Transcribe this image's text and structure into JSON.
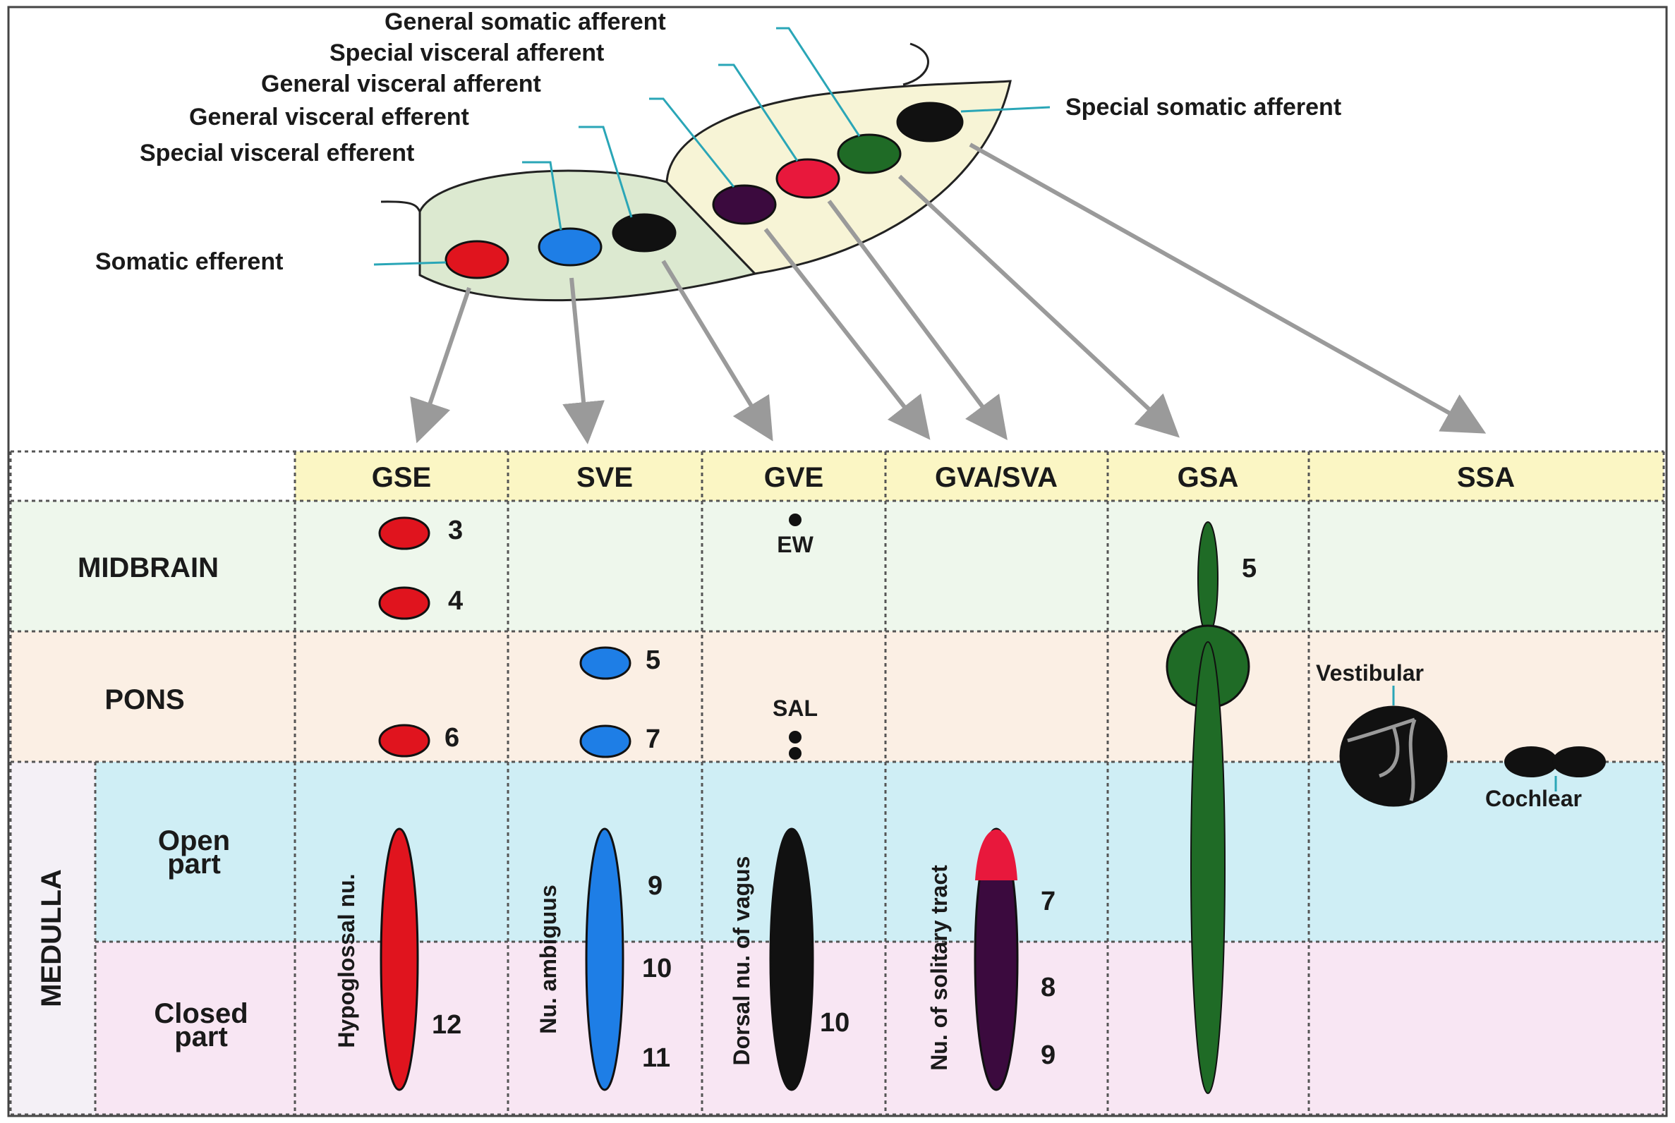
{
  "top_labels": {
    "general_somatic_afferent": "General somatic afferent",
    "special_visceral_afferent": "Special visceral afferent",
    "general_visceral_afferent": "General visceral afferent",
    "general_visceral_efferent": "General visceral efferent",
    "special_visceral_efferent": "Special visceral efferent",
    "somatic_efferent": "Somatic efferent",
    "special_somatic_afferent": "Special somatic afferent"
  },
  "columns": {
    "gse": "GSE",
    "sve": "SVE",
    "gve": "GVE",
    "gva_sva": "GVA/SVA",
    "gsa": "GSA",
    "ssa": "SSA"
  },
  "rows": {
    "midbrain": "MIDBRAIN",
    "pons": "PONS",
    "medulla": "MEDULLA",
    "open_part_1": "Open",
    "open_part_2": "part",
    "closed_part_1": "Closed",
    "closed_part_2": "part"
  },
  "cells": {
    "gse_3": "3",
    "gse_4": "4",
    "gse_6": "6",
    "gse_12": "12",
    "gse_nucleus": "Hypoglossal nu.",
    "sve_5": "5",
    "sve_7": "7",
    "sve_9": "9",
    "sve_10": "10",
    "sve_11": "11",
    "sve_nucleus": "Nu. ambiguus",
    "gve_ew": "EW",
    "gve_sal": "SAL",
    "gve_10": "10",
    "gve_nucleus": "Dorsal nu. of vagus",
    "gva_7": "7",
    "gva_8": "8",
    "gva_9": "9",
    "gva_nucleus": "Nu. of solitary tract",
    "gsa_5": "5",
    "ssa_vestibular": "Vestibular",
    "ssa_cochlear": "Cochlear"
  },
  "colors": {
    "red": "#e0141e",
    "blue": "#1e7ee6",
    "black": "#111111",
    "purple": "#3b0a3e",
    "crimson": "#e8183c",
    "green": "#1f6b26",
    "basal_plate": "#dce9d0",
    "alar_plate": "#f7f4d6",
    "header": "#fbf6c4",
    "midbrain": "#eef7ec",
    "pons": "#fbefe4",
    "medulla_open": "#cfeef5",
    "medulla_closed": "#f8e6f3"
  }
}
